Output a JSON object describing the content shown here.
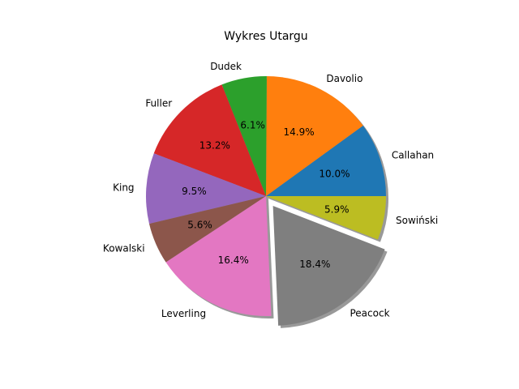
{
  "chart_data": {
    "type": "pie",
    "title": "Wykres Utargu",
    "slices": [
      {
        "label": "Callahan",
        "value": 10.0,
        "pct_text": "10.0%",
        "color": "#1f77b4",
        "exploded": false
      },
      {
        "label": "Davolio",
        "value": 14.9,
        "pct_text": "14.9%",
        "color": "#ff7f0e",
        "exploded": false
      },
      {
        "label": "Dudek",
        "value": 6.1,
        "pct_text": "6.1%",
        "color": "#2ca02c",
        "exploded": false
      },
      {
        "label": "Fuller",
        "value": 13.2,
        "pct_text": "13.2%",
        "color": "#d62728",
        "exploded": false
      },
      {
        "label": "King",
        "value": 9.5,
        "pct_text": "9.5%",
        "color": "#9467bd",
        "exploded": false
      },
      {
        "label": "Kowalski",
        "value": 5.6,
        "pct_text": "5.6%",
        "color": "#8c564b",
        "exploded": false
      },
      {
        "label": "Leverling",
        "value": 16.4,
        "pct_text": "16.4%",
        "color": "#e377c2",
        "exploded": false
      },
      {
        "label": "Peacock",
        "value": 18.4,
        "pct_text": "18.4%",
        "color": "#7f7f7f",
        "exploded": true
      },
      {
        "label": "Sowiński",
        "value": 5.9,
        "pct_text": "5.9%",
        "color": "#bcbd22",
        "exploded": false
      }
    ],
    "shadow": true,
    "legend": "none"
  }
}
